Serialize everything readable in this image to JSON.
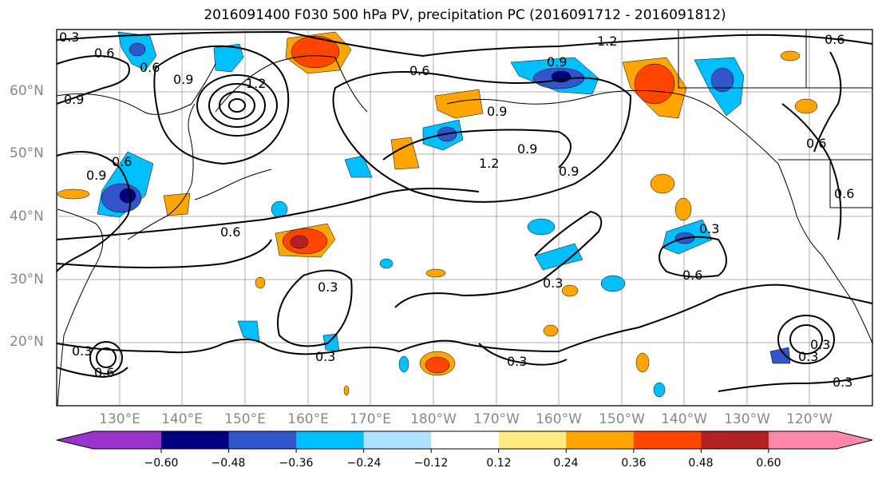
{
  "title": "2016091400 F030 500 hPa PV, precipitation PC (2016091712 - 2016091812)",
  "lat_labels": [
    "60°N",
    "50°N",
    "40°N",
    "30°N",
    "20°N"
  ],
  "lon_labels": [
    "130°E",
    "140°E",
    "150°E",
    "160°E",
    "170°E",
    "180°W",
    "170°W",
    "160°W",
    "150°W",
    "140°W",
    "130°W",
    "120°W"
  ],
  "contour_labels": [
    "0.3",
    "0.6",
    "0.6",
    "0.9",
    "0.9",
    "1.2",
    "0.6",
    "0.9",
    "0.6",
    "1.2",
    "0.9",
    "0.9",
    "0.6",
    "1.2",
    "0.9",
    "0.9",
    "0.6",
    "0.6",
    "0.3",
    "0.3",
    "0.6",
    "0.3",
    "0.3",
    "0.3",
    "0.6",
    "0.3",
    "0.3",
    "0.3",
    "0.6",
    "0.3"
  ],
  "colorbar": {
    "ticks": [
      "−0.60",
      "−0.48",
      "−0.36",
      "−0.24",
      "−0.12",
      "0.12",
      "0.24",
      "0.36",
      "0.48",
      "0.60"
    ],
    "colors": [
      "#9933cc",
      "#000080",
      "#3355cc",
      "#00bfff",
      "#b0e2ff",
      "#ffffff",
      "#ffeb80",
      "#ffa500",
      "#ff4500",
      "#b22222",
      "#ff88aa"
    ]
  }
}
